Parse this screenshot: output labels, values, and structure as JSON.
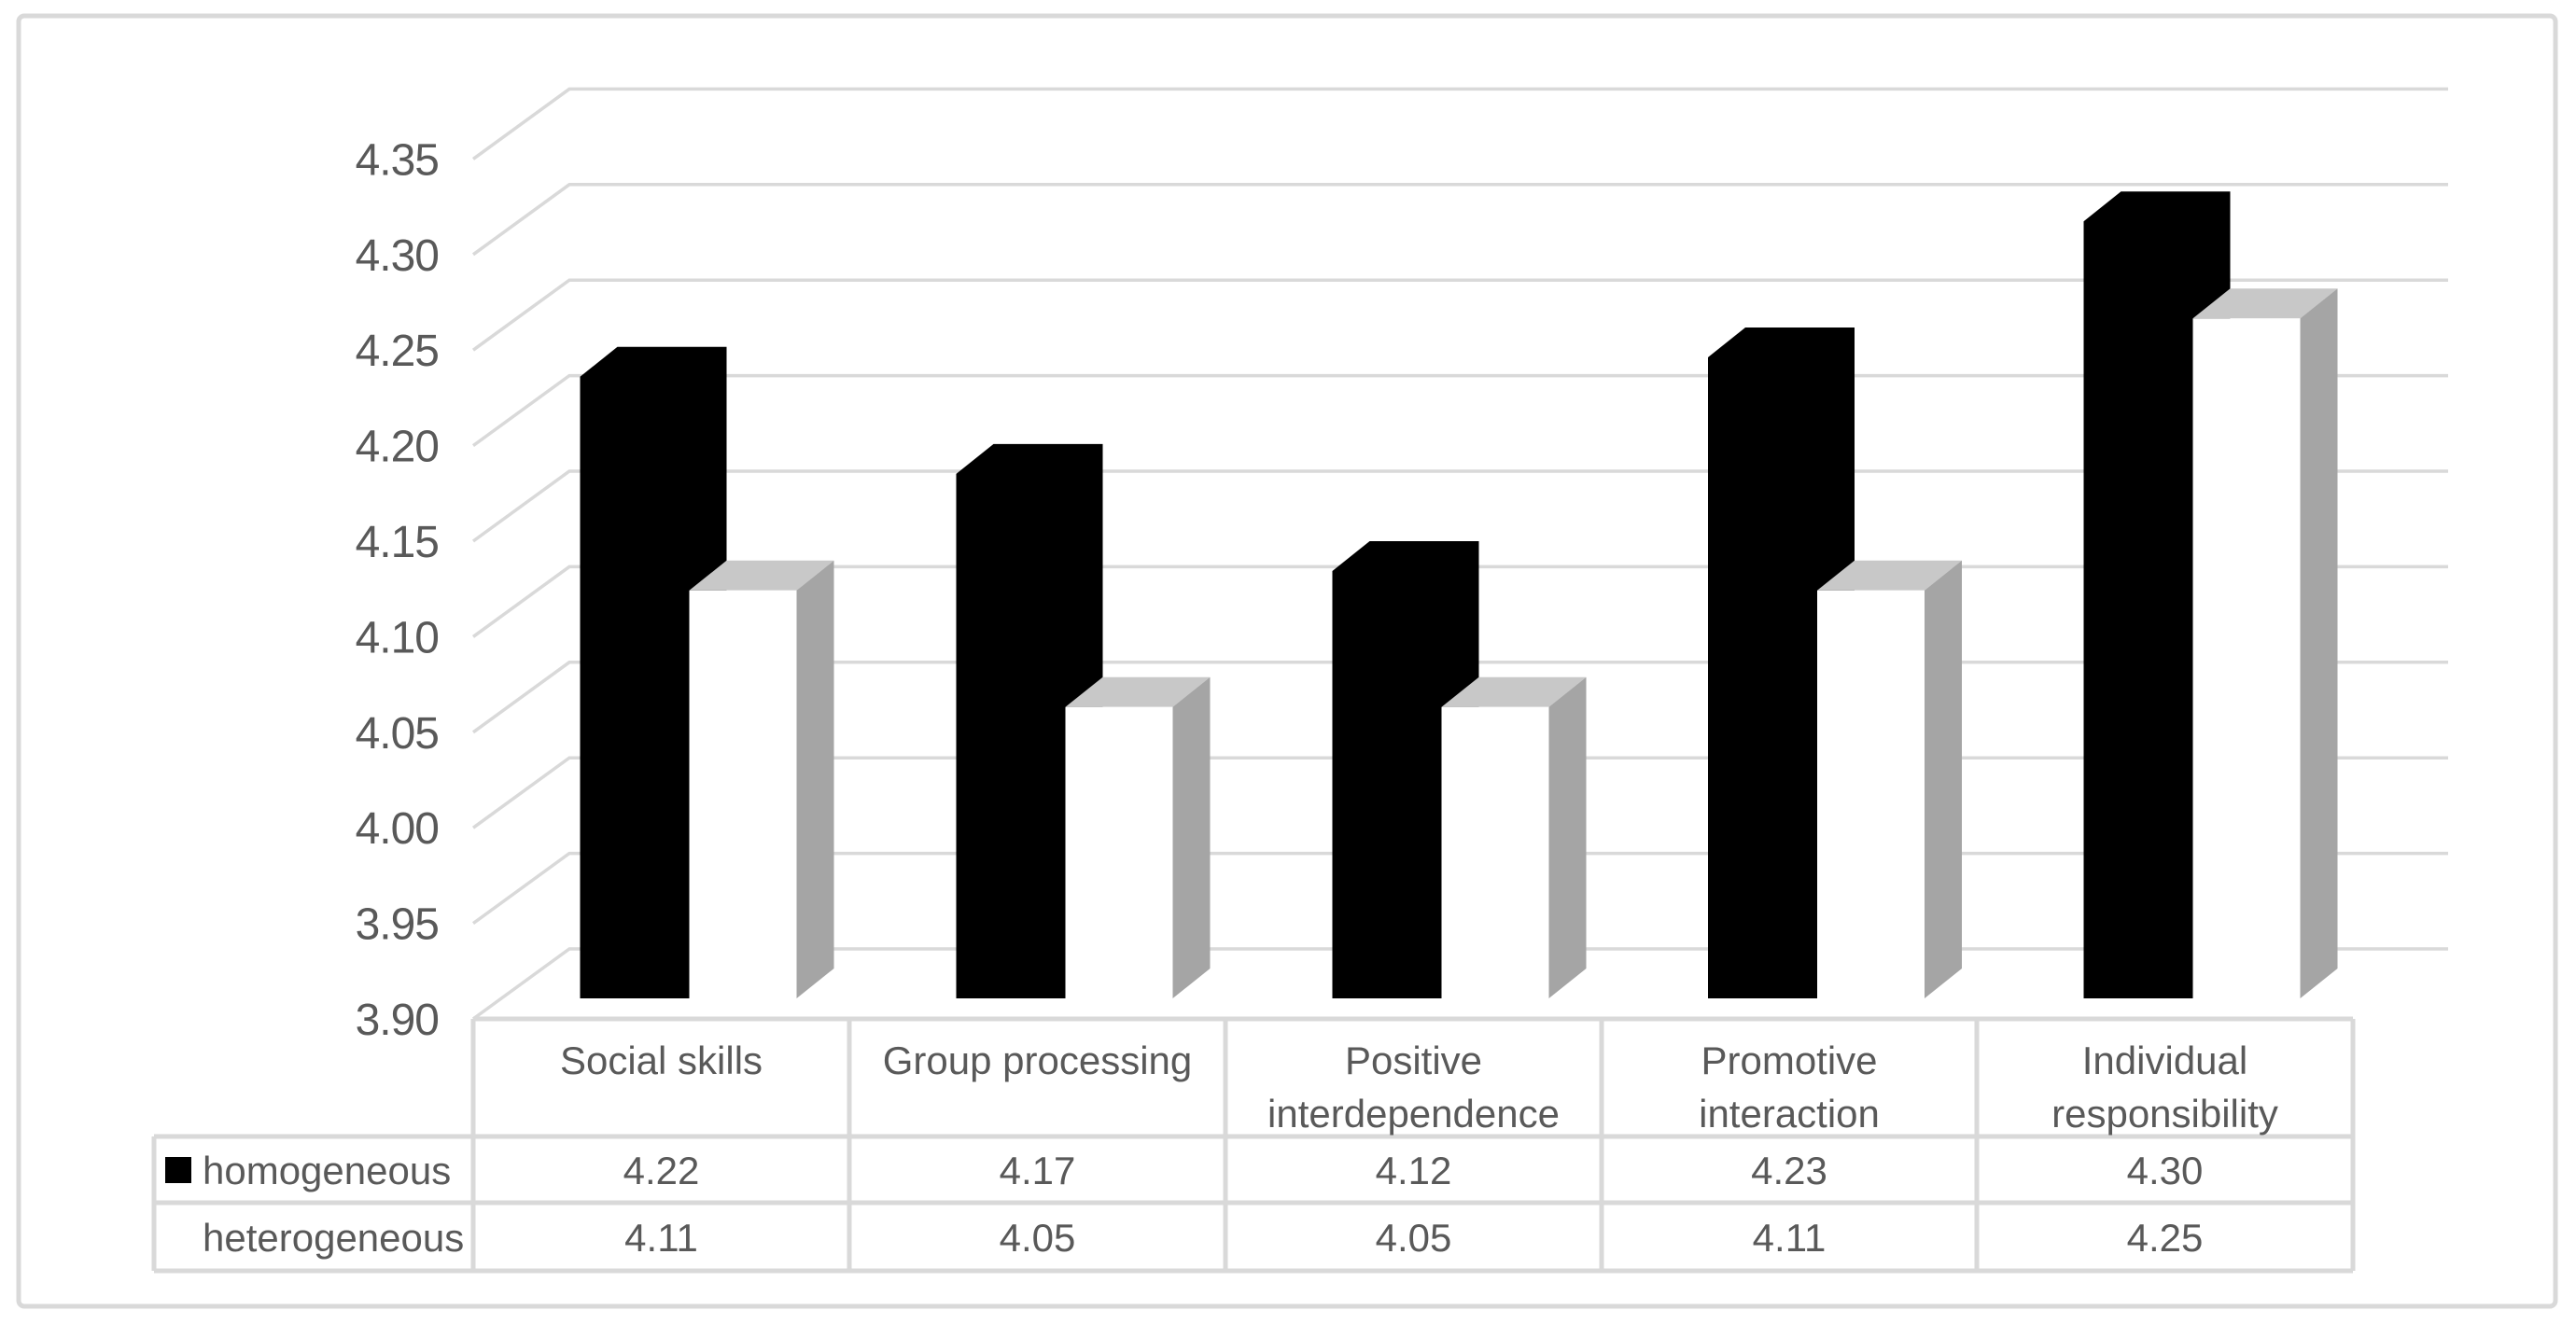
{
  "chart_data": {
    "type": "bar",
    "variant": "3d-clustered-column",
    "title": "",
    "xlabel": "",
    "ylabel": "",
    "grid": true,
    "legend_position": "data-table-left",
    "categories": [
      "Social skills",
      "Group processing",
      "Positive interdependence",
      "Promotive interaction",
      "Individual responsibility"
    ],
    "categories_lines": [
      [
        "Social skills"
      ],
      [
        "Group processing"
      ],
      [
        "Positive",
        "interdependence"
      ],
      [
        "Promotive",
        "interaction"
      ],
      [
        "Individual",
        "responsibility"
      ]
    ],
    "series": [
      {
        "name": "homogeneous",
        "key_style": "black-square",
        "values": [
          4.22,
          4.17,
          4.12,
          4.23,
          4.3
        ],
        "labels": [
          "4.22",
          "4.17",
          "4.12",
          "4.23",
          "4.30"
        ]
      },
      {
        "name": "heterogeneous",
        "key_style": "white-square",
        "values": [
          4.11,
          4.05,
          4.05,
          4.11,
          4.25
        ],
        "labels": [
          "4.11",
          "4.05",
          "4.05",
          "4.11",
          "4.25"
        ]
      }
    ],
    "y_axis": {
      "min": 3.9,
      "max": 4.35,
      "step": 0.05,
      "tick_labels": [
        "3.90",
        "3.95",
        "4.00",
        "4.05",
        "4.10",
        "4.15",
        "4.20",
        "4.25",
        "4.30",
        "4.35"
      ]
    }
  },
  "colors": {
    "background": "#ffffff",
    "frame_border": "#d9d9d9",
    "gridline": "#d9d9d9",
    "table_border": "#d9d9d9",
    "text": "#595959",
    "series_black_fill": "#000000",
    "series_white_front": "#ffffff",
    "series_white_top": "#c8c8c8",
    "series_white_side": "#a5a5a5"
  }
}
